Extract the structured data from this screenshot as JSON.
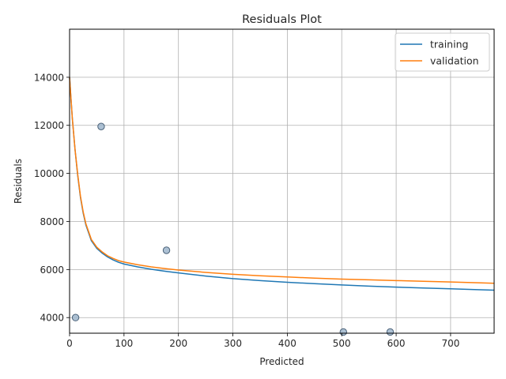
{
  "chart_data": {
    "type": "line",
    "title": "Residuals Plot",
    "xlabel": "Predicted",
    "ylabel": "Residuals",
    "xlim": [
      0,
      780
    ],
    "ylim": [
      3350,
      16000
    ],
    "xticks": [
      0,
      100,
      200,
      300,
      400,
      500,
      600,
      700
    ],
    "yticks": [
      4000,
      6000,
      8000,
      10000,
      12000,
      14000
    ],
    "grid": true,
    "legend_position": "top-right",
    "series": [
      {
        "name": "training",
        "color": "#1f77b4",
        "x": [
          0,
          5,
          10,
          15,
          20,
          25,
          30,
          40,
          50,
          60,
          70,
          80,
          90,
          100,
          125,
          150,
          175,
          200,
          250,
          300,
          350,
          400,
          450,
          500,
          550,
          600,
          650,
          700,
          750,
          780
        ],
        "values": [
          14000,
          12300,
          11000,
          9900,
          9000,
          8350,
          7850,
          7200,
          6880,
          6680,
          6520,
          6400,
          6300,
          6230,
          6110,
          6010,
          5930,
          5860,
          5730,
          5620,
          5540,
          5470,
          5410,
          5360,
          5310,
          5270,
          5230,
          5200,
          5160,
          5140
        ]
      },
      {
        "name": "validation",
        "color": "#ff7f0e",
        "x": [
          0,
          5,
          10,
          15,
          20,
          25,
          30,
          40,
          50,
          60,
          70,
          80,
          90,
          100,
          125,
          150,
          175,
          200,
          250,
          300,
          350,
          400,
          450,
          500,
          550,
          600,
          650,
          700,
          750,
          780
        ],
        "values": [
          14000,
          12300,
          11000,
          9950,
          9050,
          8400,
          7900,
          7250,
          6930,
          6730,
          6570,
          6460,
          6370,
          6310,
          6200,
          6110,
          6040,
          5980,
          5880,
          5800,
          5740,
          5690,
          5640,
          5600,
          5570,
          5540,
          5510,
          5480,
          5450,
          5430
        ]
      }
    ],
    "points": {
      "color": "#9fb6cd",
      "edge_color": "#4a6178",
      "x": [
        11,
        58,
        178,
        503,
        589
      ],
      "y": [
        4000,
        11950,
        6800,
        3400,
        3400
      ]
    }
  }
}
